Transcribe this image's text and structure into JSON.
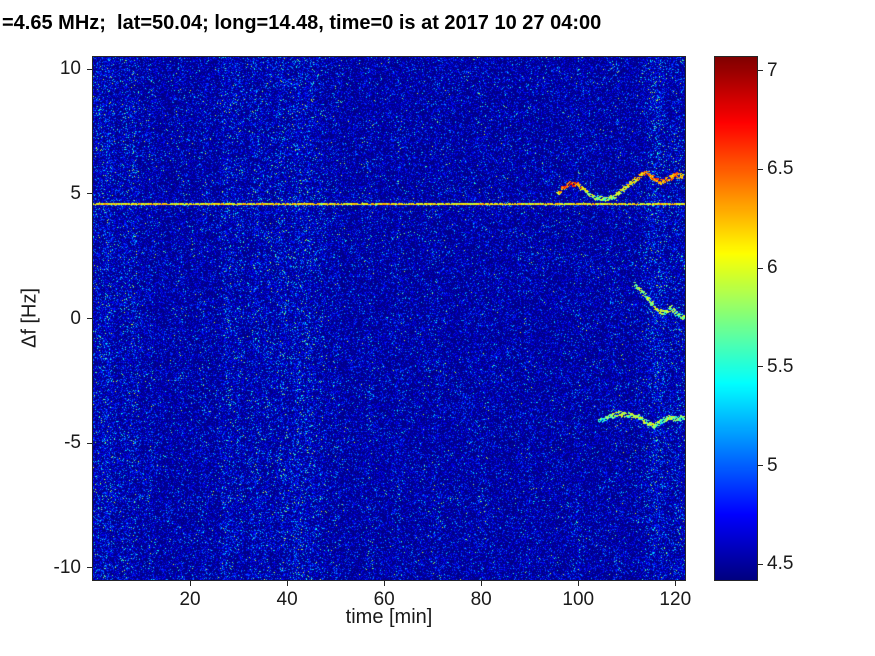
{
  "chart_data": {
    "type": "heatmap",
    "title": "=4.65 MHz;  lat=50.04; long=14.48, time=0 is at 2017 10 27 04:00",
    "xlabel": "time [min]",
    "ylabel": "Δf [Hz]",
    "xlim": [
      0,
      122
    ],
    "ylim": [
      -10.5,
      10.5
    ],
    "xticks": [
      20,
      40,
      60,
      80,
      100,
      120
    ],
    "yticks": [
      -10,
      -5,
      0,
      5,
      10
    ],
    "grid": false,
    "colormap": "jet",
    "colorbar": {
      "min": 4.42,
      "max": 7.07,
      "ticks": [
        4.5,
        5,
        5.5,
        6,
        6.5,
        7
      ],
      "position": "right"
    },
    "noise_floor": {
      "base_value": 4.45,
      "speckle_value_range": [
        4.6,
        6.0
      ],
      "description": "dark blue background with sparse light-blue/cyan speckle noise"
    },
    "vertical_noise_bands": [
      {
        "t": 1.2,
        "width": 1.0,
        "strength": 0.6
      },
      {
        "t": 3.2,
        "width": 1.2,
        "strength": 0.9
      },
      {
        "t": 6.5,
        "width": 1.0,
        "strength": 0.6
      },
      {
        "t": 8.5,
        "width": 1.0,
        "strength": 0.7
      },
      {
        "t": 12.0,
        "width": 0.8,
        "strength": 0.4
      },
      {
        "t": 18.0,
        "width": 0.8,
        "strength": 0.3
      },
      {
        "t": 23.0,
        "width": 0.8,
        "strength": 0.3
      },
      {
        "t": 27.5,
        "width": 1.2,
        "strength": 0.8
      },
      {
        "t": 30.0,
        "width": 1.0,
        "strength": 0.6
      },
      {
        "t": 33.5,
        "width": 1.2,
        "strength": 0.7
      },
      {
        "t": 36.0,
        "width": 1.0,
        "strength": 0.5
      },
      {
        "t": 39.0,
        "width": 1.2,
        "strength": 0.8
      },
      {
        "t": 42.0,
        "width": 1.3,
        "strength": 0.9
      },
      {
        "t": 44.5,
        "width": 1.3,
        "strength": 0.8
      },
      {
        "t": 47.0,
        "width": 1.0,
        "strength": 0.5
      },
      {
        "t": 50.0,
        "width": 0.8,
        "strength": 0.4
      },
      {
        "t": 57.0,
        "width": 0.8,
        "strength": 0.35
      },
      {
        "t": 63.0,
        "width": 0.8,
        "strength": 0.3
      },
      {
        "t": 71.0,
        "width": 0.8,
        "strength": 0.3
      },
      {
        "t": 80.0,
        "width": 0.8,
        "strength": 0.25
      },
      {
        "t": 90.0,
        "width": 0.8,
        "strength": 0.25
      },
      {
        "t": 100.0,
        "width": 0.8,
        "strength": 0.3
      },
      {
        "t": 108.0,
        "width": 0.8,
        "strength": 0.3
      },
      {
        "t": 116.0,
        "width": 2.2,
        "strength": 1.0
      },
      {
        "t": 120.5,
        "width": 1.3,
        "strength": 0.6
      }
    ],
    "carrier_line": {
      "freq": 4.6,
      "value": 6.15,
      "t_start": 0,
      "t_end": 122
    },
    "doppler_traces": [
      {
        "name": "upper-trace",
        "base_value": 6.3,
        "points": [
          [
            95.5,
            5.05,
            6.1
          ],
          [
            97,
            5.3,
            6.6
          ],
          [
            98.5,
            5.45,
            6.7
          ],
          [
            100,
            5.35,
            6.5
          ],
          [
            101.5,
            5.1,
            6.0
          ],
          [
            103,
            4.9,
            5.9
          ],
          [
            105,
            4.8,
            5.9
          ],
          [
            107,
            4.9,
            6.0
          ],
          [
            109,
            5.15,
            6.1
          ],
          [
            111,
            5.5,
            6.2
          ],
          [
            112.5,
            5.75,
            6.4
          ],
          [
            114,
            5.9,
            6.5
          ],
          [
            115.5,
            5.65,
            6.6
          ],
          [
            117,
            5.5,
            6.4
          ],
          [
            118.5,
            5.65,
            6.5
          ],
          [
            120,
            5.8,
            6.6
          ],
          [
            121.5,
            5.7,
            6.3
          ]
        ]
      },
      {
        "name": "middle-trace",
        "base_value": 6.0,
        "points": [
          [
            111.5,
            1.35,
            5.8
          ],
          [
            113,
            1.1,
            6.0
          ],
          [
            114.5,
            0.75,
            5.9
          ],
          [
            116,
            0.4,
            6.1
          ],
          [
            117.5,
            0.2,
            5.9
          ],
          [
            119,
            0.45,
            6.0
          ],
          [
            120.5,
            0.15,
            5.8
          ],
          [
            122,
            0.05,
            5.9
          ]
        ]
      },
      {
        "name": "lower-trace",
        "base_value": 5.9,
        "points": [
          [
            104,
            -4.1,
            5.6
          ],
          [
            106,
            -3.95,
            5.8
          ],
          [
            108,
            -3.8,
            6.0
          ],
          [
            110,
            -3.85,
            5.9
          ],
          [
            112,
            -3.9,
            6.0
          ],
          [
            114,
            -4.15,
            5.9
          ],
          [
            115.5,
            -4.3,
            6.0
          ],
          [
            117,
            -4.1,
            5.8
          ],
          [
            118.5,
            -3.95,
            5.9
          ],
          [
            120,
            -4.0,
            5.9
          ],
          [
            122,
            -3.95,
            5.8
          ]
        ]
      }
    ]
  },
  "colors": {
    "text": "#1a1a1a",
    "axis_border": "#262626",
    "figure_background": "#ffffff"
  }
}
